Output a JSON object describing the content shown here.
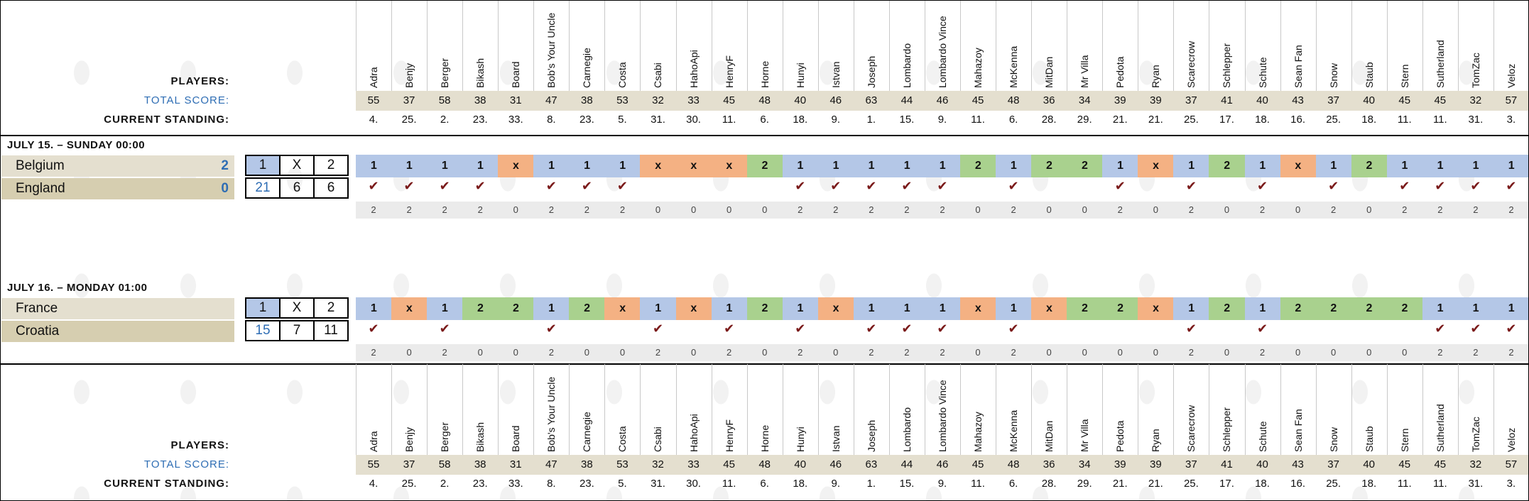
{
  "labels": {
    "players": "PLAYERS:",
    "total_score": "TOTAL SCORE:",
    "current_standing": "CURRENT STANDING:"
  },
  "players": [
    "Adra",
    "Benjy",
    "Berger",
    "Bikash",
    "Board",
    "Bob's Your Uncle",
    "Carnegie",
    "Costa",
    "Csabi",
    "HahoApi",
    "HenryF",
    "Horne",
    "Hunyi",
    "Istvan",
    "Joseph",
    "Lombardo",
    "Lombardo Vince",
    "Mahazoy",
    "McKenna",
    "MitDan",
    "Mr Villa",
    "Pedota",
    "Ryan",
    "Scarecrow",
    "Schlepper",
    "Schute",
    "Sean Fan",
    "Snow",
    "Staub",
    "Stern",
    "Sutherland",
    "TomZac",
    "Veloz"
  ],
  "total_scores": [
    "55",
    "37",
    "58",
    "38",
    "31",
    "47",
    "38",
    "53",
    "32",
    "33",
    "45",
    "48",
    "40",
    "46",
    "63",
    "44",
    "46",
    "45",
    "48",
    "36",
    "34",
    "39",
    "39",
    "37",
    "41",
    "40",
    "43",
    "37",
    "40",
    "45",
    "45",
    "32",
    "57"
  ],
  "standings": [
    "4.",
    "25.",
    "2.",
    "23.",
    "33.",
    "8.",
    "23.",
    "5.",
    "31.",
    "30.",
    "11.",
    "6.",
    "18.",
    "9.",
    "1.",
    "15.",
    "9.",
    "11.",
    "6.",
    "28.",
    "29.",
    "21.",
    "21.",
    "25.",
    "17.",
    "18.",
    "16.",
    "25.",
    "18.",
    "11.",
    "11.",
    "31.",
    "3."
  ],
  "matches": [
    {
      "date": "JULY 15. – SUNDAY 00:00",
      "home": "Belgium",
      "away": "England",
      "home_score": "2",
      "away_score": "0",
      "odds_head": [
        "1",
        "X",
        "2"
      ],
      "odds_vals": [
        "21",
        "6",
        "6"
      ],
      "picks": [
        "1",
        "1",
        "1",
        "1",
        "x",
        "1",
        "1",
        "1",
        "x",
        "x",
        "x",
        "2",
        "1",
        "1",
        "1",
        "1",
        "1",
        "2",
        "1",
        "2",
        "2",
        "1",
        "x",
        "1",
        "2",
        "1",
        "x",
        "1",
        "2",
        "1",
        "1",
        "1",
        "1"
      ],
      "ticks": [
        "✔",
        "✔",
        "✔",
        "✔",
        "",
        "✔",
        "✔",
        "✔",
        "",
        "",
        "",
        "",
        "✔",
        "✔",
        "✔",
        "✔",
        "✔",
        "",
        "✔",
        "",
        "",
        "✔",
        "",
        "✔",
        "",
        "✔",
        "",
        "✔",
        "",
        "✔",
        "✔",
        "✔",
        "✔"
      ],
      "points": [
        "2",
        "2",
        "2",
        "2",
        "0",
        "2",
        "2",
        "2",
        "0",
        "0",
        "0",
        "0",
        "2",
        "2",
        "2",
        "2",
        "2",
        "0",
        "2",
        "0",
        "0",
        "2",
        "0",
        "2",
        "0",
        "2",
        "0",
        "2",
        "0",
        "2",
        "2",
        "2",
        "2"
      ]
    },
    {
      "date": "JULY 16. – MONDAY 01:00",
      "home": "France",
      "away": "Croatia",
      "home_score": "",
      "away_score": "",
      "odds_head": [
        "1",
        "X",
        "2"
      ],
      "odds_vals": [
        "15",
        "7",
        "11"
      ],
      "picks": [
        "1",
        "x",
        "1",
        "2",
        "2",
        "1",
        "2",
        "x",
        "1",
        "x",
        "1",
        "2",
        "1",
        "x",
        "1",
        "1",
        "1",
        "x",
        "1",
        "x",
        "2",
        "2",
        "x",
        "1",
        "2",
        "1",
        "2",
        "2",
        "2",
        "2",
        "1",
        "1",
        "1"
      ],
      "ticks": [
        "✔",
        "",
        "✔",
        "",
        "",
        "✔",
        "",
        "",
        "✔",
        "",
        "✔",
        "",
        "✔",
        "",
        "✔",
        "✔",
        "✔",
        "",
        "✔",
        "",
        "",
        "",
        "",
        "✔",
        "",
        "✔",
        "",
        "",
        "",
        "",
        "✔",
        "✔",
        "✔"
      ],
      "points": [
        "2",
        "0",
        "2",
        "0",
        "0",
        "2",
        "0",
        "0",
        "2",
        "0",
        "2",
        "0",
        "2",
        "0",
        "2",
        "2",
        "2",
        "0",
        "2",
        "0",
        "0",
        "0",
        "0",
        "2",
        "0",
        "2",
        "0",
        "0",
        "0",
        "0",
        "2",
        "2",
        "2"
      ]
    }
  ],
  "colors": {
    "pick_1": "#b4c7e7",
    "pick_x": "#f4b183",
    "pick_2": "#a9d18e",
    "header_band": "#e4dfcf",
    "team_top": "#e4dfcf",
    "team_bottom": "#d6ceb0",
    "accent_blue": "#2e6db4"
  }
}
